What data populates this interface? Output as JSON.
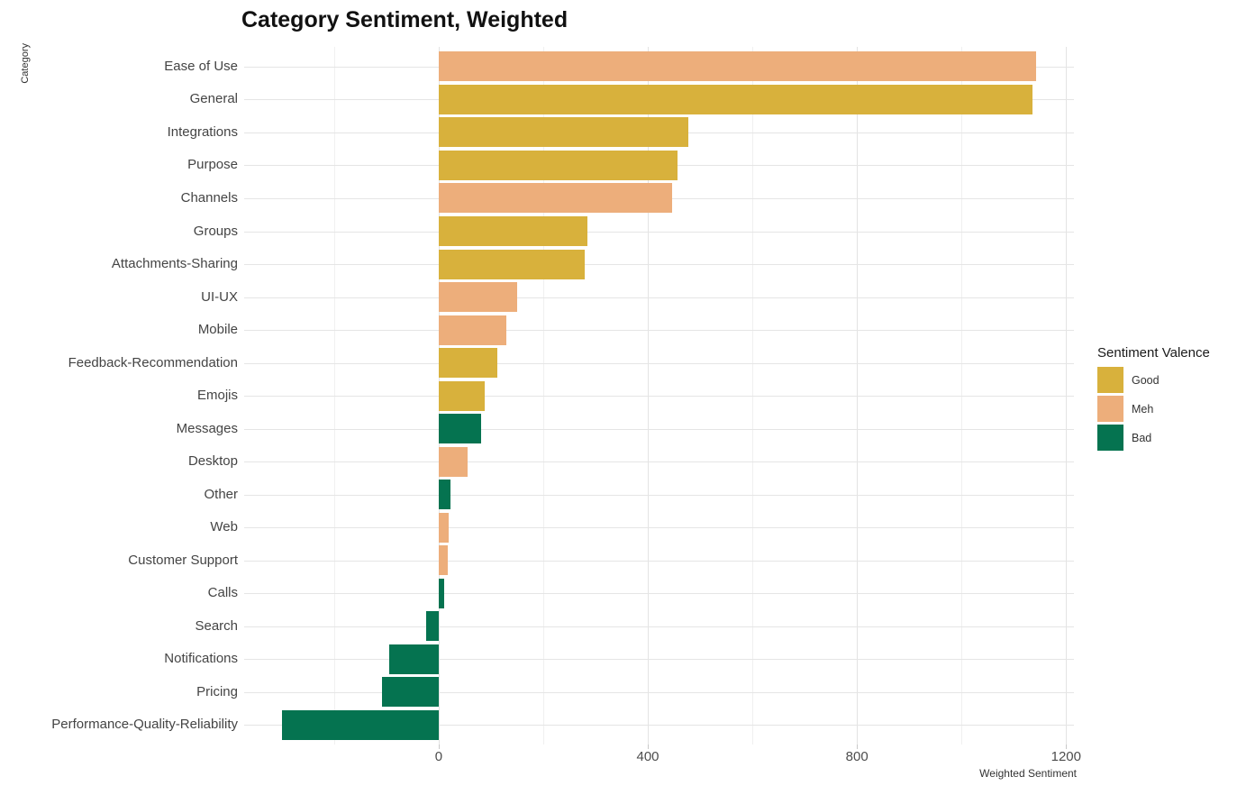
{
  "title": "Category Sentiment, Weighted",
  "chart_data": {
    "type": "bar",
    "orientation": "horizontal",
    "title": "Category Sentiment, Weighted",
    "xlabel": "Weighted Sentiment",
    "ylabel": "Category",
    "xlim": [
      -372,
      1215
    ],
    "x_major_ticks": [
      0,
      400,
      800,
      1200
    ],
    "x_minor_gridlines": [
      -200,
      200,
      600,
      1000
    ],
    "grid": true,
    "background": "#ffffff",
    "legend": {
      "title": "Sentiment Valence",
      "position": "right",
      "entries": [
        {
          "label": "Good",
          "color": "#d8b13c"
        },
        {
          "label": "Meh",
          "color": "#edae7b"
        },
        {
          "label": "Bad",
          "color": "#057350"
        }
      ]
    },
    "bars": [
      {
        "category": "Ease of Use",
        "value": 1143,
        "valence": "Meh"
      },
      {
        "category": "General",
        "value": 1135,
        "valence": "Good"
      },
      {
        "category": "Integrations",
        "value": 478,
        "valence": "Good"
      },
      {
        "category": "Purpose",
        "value": 457,
        "valence": "Good"
      },
      {
        "category": "Channels",
        "value": 447,
        "valence": "Meh"
      },
      {
        "category": "Groups",
        "value": 285,
        "valence": "Good"
      },
      {
        "category": "Attachments-Sharing",
        "value": 279,
        "valence": "Good"
      },
      {
        "category": "UI-UX",
        "value": 150,
        "valence": "Meh"
      },
      {
        "category": "Mobile",
        "value": 129,
        "valence": "Meh"
      },
      {
        "category": "Feedback-Recommendation",
        "value": 113,
        "valence": "Good"
      },
      {
        "category": "Emojis",
        "value": 88,
        "valence": "Good"
      },
      {
        "category": "Messages",
        "value": 81,
        "valence": "Bad"
      },
      {
        "category": "Desktop",
        "value": 55,
        "valence": "Meh"
      },
      {
        "category": "Other",
        "value": 22,
        "valence": "Bad"
      },
      {
        "category": "Web",
        "value": 19,
        "valence": "Meh"
      },
      {
        "category": "Customer Support",
        "value": 17,
        "valence": "Meh"
      },
      {
        "category": "Calls",
        "value": 10,
        "valence": "Bad"
      },
      {
        "category": "Search",
        "value": -24,
        "valence": "Bad"
      },
      {
        "category": "Notifications",
        "value": -95,
        "valence": "Bad"
      },
      {
        "category": "Pricing",
        "value": -108,
        "valence": "Bad"
      },
      {
        "category": "Performance-Quality-Reliability",
        "value": -300,
        "valence": "Bad"
      }
    ]
  }
}
